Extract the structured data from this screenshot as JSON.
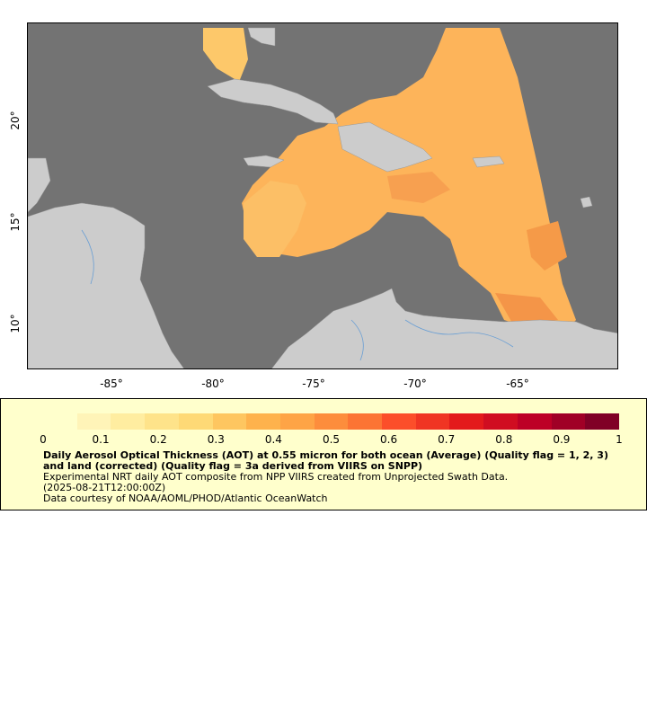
{
  "map": {
    "longitude_ticks": [
      "-85°",
      "-80°",
      "-75°",
      "-70°",
      "-65°"
    ],
    "latitude_ticks": [
      "20°",
      "15°",
      "10°"
    ],
    "ocean_color": "#737373",
    "land_color": "#cccccc"
  },
  "legend": {
    "colorbar_ticks": [
      "0",
      "0.1",
      "0.2",
      "0.3",
      "0.4",
      "0.5",
      "0.6",
      "0.7",
      "0.8",
      "0.9",
      "1"
    ],
    "colorbar_colors": [
      "#ffffcc",
      "#fff4b8",
      "#ffeda0",
      "#fee38a",
      "#fed976",
      "#fec660",
      "#feb24c",
      "#fea446",
      "#fd8d3c",
      "#fc7434",
      "#fc4e2a",
      "#f03523",
      "#e31a1c",
      "#d00d21",
      "#bd0026",
      "#a00026",
      "#800026"
    ],
    "title": "Daily Aerosol Optical Thickness (AOT) at 0.55 micron for both ocean (Average) (Quality flag = 1, 2, 3) and land (corrected) (Quality flag = 3a derived from VIIRS on SNPP)",
    "description": "Experimental NRT daily AOT composite from NPP VIIRS created from Unprojected Swath Data.",
    "time": "(2025-08-21T12:00:00Z)",
    "credit": "Data courtesy of NOAA/AOML/PHOD/Atlantic OceanWatch"
  }
}
